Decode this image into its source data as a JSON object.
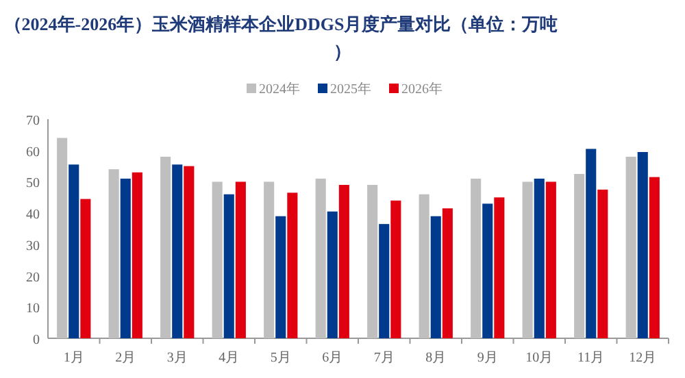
{
  "chart_data": {
    "type": "bar",
    "title": "（2024年-2026年）玉米酒精样本企业DDGS月度产量对比（单位：万吨）",
    "categories": [
      "1月",
      "2月",
      "3月",
      "4月",
      "5月",
      "6月",
      "7月",
      "8月",
      "9月",
      "10月",
      "11月",
      "12月"
    ],
    "series": [
      {
        "name": "2024年",
        "color": "#bfbfbf",
        "values": [
          64,
          54,
          58,
          50,
          50,
          51,
          49,
          46,
          51,
          50,
          52.5,
          58
        ]
      },
      {
        "name": "2025年",
        "color": "#003a8c",
        "values": [
          55.5,
          51,
          55.5,
          46,
          39,
          40.5,
          36.5,
          39,
          43,
          51,
          60.5,
          59.5
        ]
      },
      {
        "name": "2026年",
        "color": "#e00010",
        "values": [
          44.5,
          53,
          55,
          50,
          46.5,
          49,
          44,
          41.5,
          45,
          50,
          47.5,
          51.5
        ]
      }
    ],
    "ylim": [
      0,
      70
    ],
    "yticks": [
      0,
      10,
      20,
      30,
      40,
      50,
      60,
      70
    ],
    "grid": false,
    "legend": "top"
  }
}
